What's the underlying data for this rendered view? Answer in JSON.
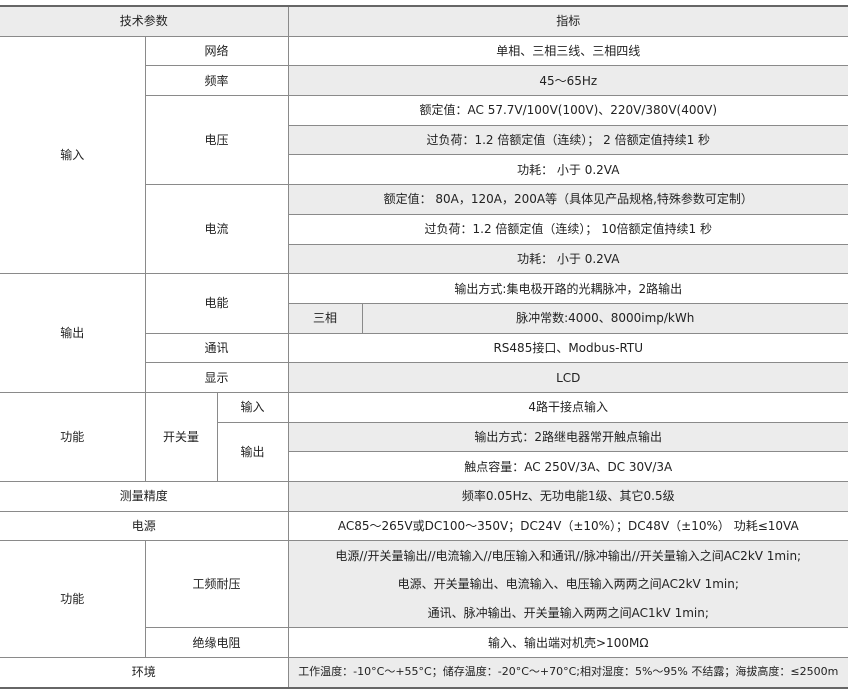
{
  "header": {
    "param": "技术参数",
    "spec": "指标"
  },
  "input": {
    "label": "输入",
    "network": {
      "label": "网络",
      "value": "单相、三相三线、三相四线"
    },
    "frequency": {
      "label": "频率",
      "value": "45～65Hz"
    },
    "voltage": {
      "label": "电压",
      "values": [
        "额定值：AC 57.7V/100V(100V)、220V/380V(400V)",
        "过负荷：1.2 倍额定值（连续）； 2 倍额定值持续1 秒",
        "功耗：  小于 0.2VA"
      ]
    },
    "current": {
      "label": "电流",
      "values": [
        "额定值： 80A，120A，200A等（具体见产品规格,特殊参数可定制）",
        "过负荷：1.2 倍额定值（连续）； 10倍额定值持续1 秒",
        "功耗：  小于 0.2VA"
      ]
    }
  },
  "output": {
    "label": "输出",
    "energy": {
      "label": "电能",
      "mode": "输出方式:集电极开路的光耦脉冲，2路输出",
      "phase": "三相",
      "constant": "脉冲常数:4000、8000imp/kWh"
    },
    "comm": {
      "label": "通讯",
      "value": "RS485接口、Modbus-RTU"
    },
    "display": {
      "label": "显示",
      "value": "LCD"
    }
  },
  "function": {
    "label": "功能",
    "switch": {
      "label": "开关量",
      "input_label": "输入",
      "input_value": "4路干接点输入",
      "output_label": "输出",
      "output_values": [
        "输出方式：2路继电器常开触点输出",
        "触点容量：AC 250V/3A、DC 30V/3A"
      ]
    }
  },
  "accuracy": {
    "label": "测量精度",
    "value": "频率0.05Hz、无功电能1级、其它0.5级"
  },
  "power": {
    "label": "电源",
    "value": "AC85～265V或DC100～350V；DC24V（±10%）；DC48V（±10%） 功耗≤10VA"
  },
  "safety": {
    "label": "功能",
    "withstand": {
      "label": "工频耐压",
      "values": [
        "电源//开关量输出//电流输入//电压输入和通讯//脉冲输出//开关量输入之间AC2kV 1min;",
        "电源、开关量输出、电流输入、电压输入两两之间AC2kV 1min;",
        "通讯、脉冲输出、开关量输入两两之间AC1kV 1min;"
      ]
    },
    "insulation": {
      "label": "绝缘电阻",
      "value": "输入、输出端对机壳>100MΩ"
    }
  },
  "environment": {
    "label": "环境",
    "value": "工作温度：-10°C～+55°C；储存温度：-20°C～+70°C;相对湿度：5%～95%  不结露；海拔高度：≤2500m"
  }
}
